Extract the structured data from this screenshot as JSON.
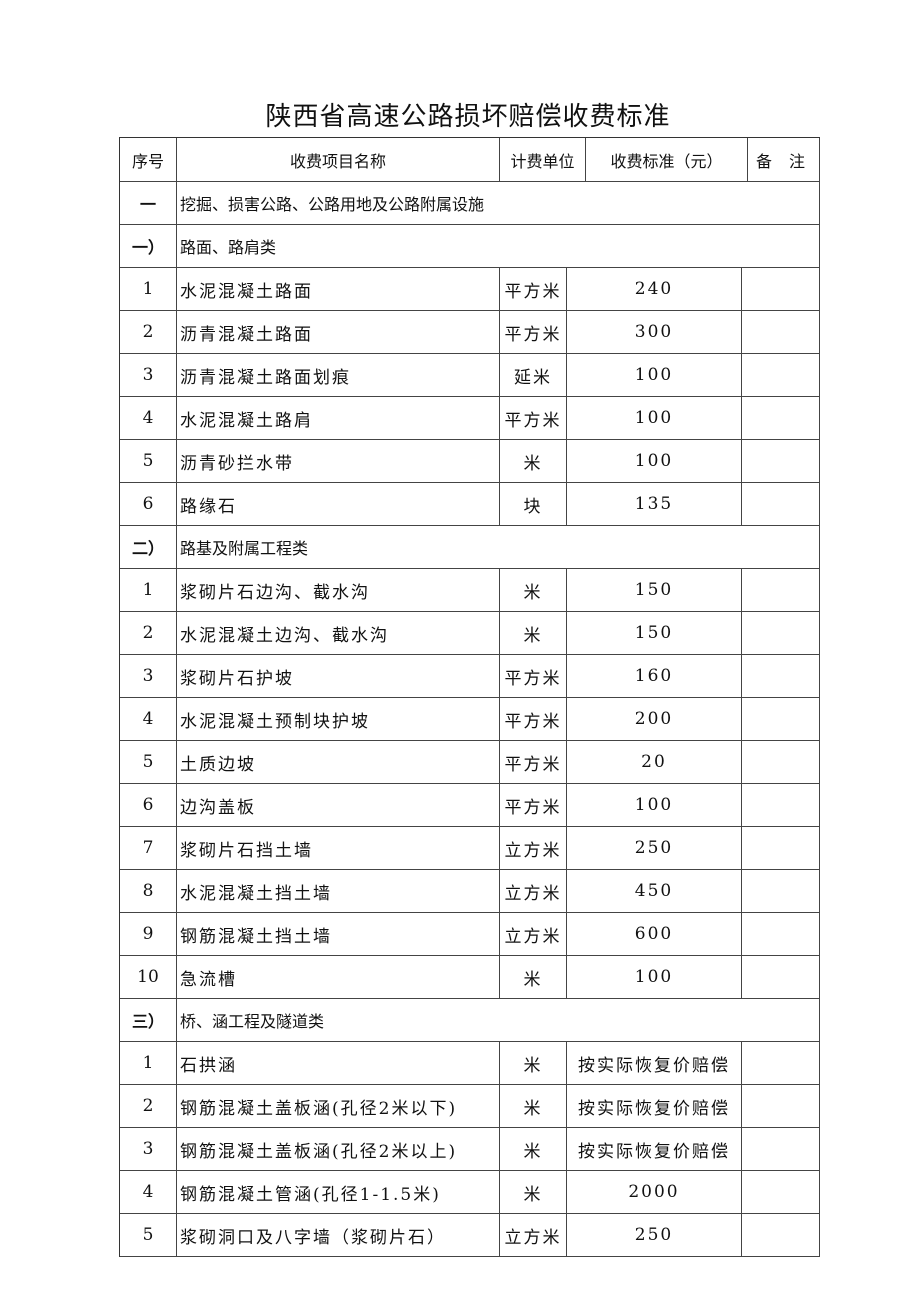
{
  "title": "陕西省高速公路损坏赔偿收费标准",
  "header": {
    "no": "序号",
    "name": "收费项目名称",
    "unit": "计费单位",
    "price": "收费标准（元）",
    "note": "备 注"
  },
  "rows": [
    {
      "type": "section",
      "no": "一",
      "name": "挖掘、损害公路、公路用地及公路附属设施"
    },
    {
      "type": "section",
      "no": "一）",
      "name": "路面、路肩类"
    },
    {
      "no": "1",
      "name": "水泥混凝土路面",
      "unit": "平方米",
      "price": "240",
      "note": ""
    },
    {
      "no": "2",
      "name": "沥青混凝土路面",
      "unit": "平方米",
      "price": "300",
      "note": ""
    },
    {
      "no": "3",
      "name": "沥青混凝土路面划痕",
      "unit": "延米",
      "price": "100",
      "note": ""
    },
    {
      "no": "4",
      "name": "水泥混凝土路肩",
      "unit": "平方米",
      "price": "100",
      "note": ""
    },
    {
      "no": "5",
      "name": "沥青砂拦水带",
      "unit": "米",
      "price": "100",
      "note": ""
    },
    {
      "no": "6",
      "name": "路缘石",
      "unit": "块",
      "price": "135",
      "note": ""
    },
    {
      "type": "section",
      "no": "二）",
      "name": "路基及附属工程类"
    },
    {
      "no": "1",
      "name": "浆砌片石边沟、截水沟",
      "unit": "米",
      "price": "150",
      "note": ""
    },
    {
      "no": "2",
      "name": "水泥混凝土边沟、截水沟",
      "unit": "米",
      "price": "150",
      "note": ""
    },
    {
      "no": "3",
      "name": "浆砌片石护坡",
      "unit": "平方米",
      "price": "160",
      "note": ""
    },
    {
      "no": "4",
      "name": "水泥混凝土预制块护坡",
      "unit": "平方米",
      "price": "200",
      "note": ""
    },
    {
      "no": "5",
      "name": "土质边坡",
      "unit": "平方米",
      "price": "20",
      "note": ""
    },
    {
      "no": "6",
      "name": "边沟盖板",
      "unit": "平方米",
      "price": "100",
      "note": ""
    },
    {
      "no": "7",
      "name": "浆砌片石挡土墙",
      "unit": "立方米",
      "price": "250",
      "note": ""
    },
    {
      "no": "8",
      "name": "水泥混凝土挡土墙",
      "unit": "立方米",
      "price": "450",
      "note": ""
    },
    {
      "no": "9",
      "name": "钢筋混凝土挡土墙",
      "unit": "立方米",
      "price": "600",
      "note": ""
    },
    {
      "no": "10",
      "name": "急流槽",
      "unit": "米",
      "price": "100",
      "note": ""
    },
    {
      "type": "section",
      "no": "三）",
      "name": "桥、涵工程及隧道类"
    },
    {
      "no": "1",
      "name": "石拱涵",
      "unit": "米",
      "price": "按实际恢复价赔偿",
      "note": ""
    },
    {
      "no": "2",
      "name": "钢筋混凝土盖板涵(孔径2米以下)",
      "unit": "米",
      "price": "按实际恢复价赔偿",
      "note": ""
    },
    {
      "no": "3",
      "name": "钢筋混凝土盖板涵(孔径2米以上)",
      "unit": "米",
      "price": "按实际恢复价赔偿",
      "note": ""
    },
    {
      "no": "4",
      "name": "钢筋混凝土管涵(孔径1-1.5米)",
      "unit": "米",
      "price": "2000",
      "note": ""
    },
    {
      "no": "5",
      "name": "浆砌洞口及八字墙（浆砌片石）",
      "unit": "立方米",
      "price": "250",
      "note": ""
    }
  ]
}
